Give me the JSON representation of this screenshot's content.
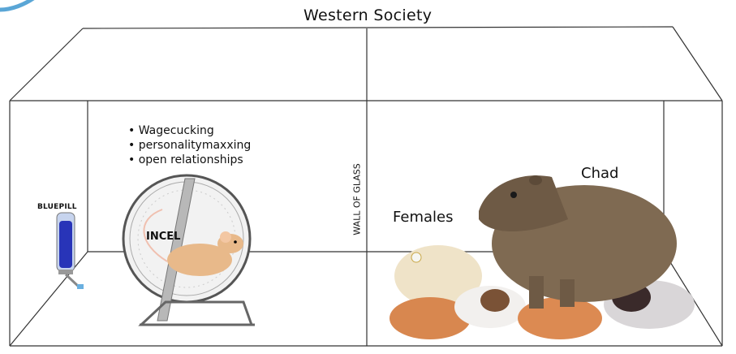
{
  "title": "Western Society",
  "wheel_activities": [
    "Wagecucking",
    "personalitymaxxing",
    "open relationships"
  ],
  "labels": {
    "bluepill": "BLUEPILL",
    "incel": "INCEL",
    "wall": "WALL OF GLASS",
    "females": "Females",
    "chad": "Chad"
  },
  "badge_color": "#5aa6d6"
}
